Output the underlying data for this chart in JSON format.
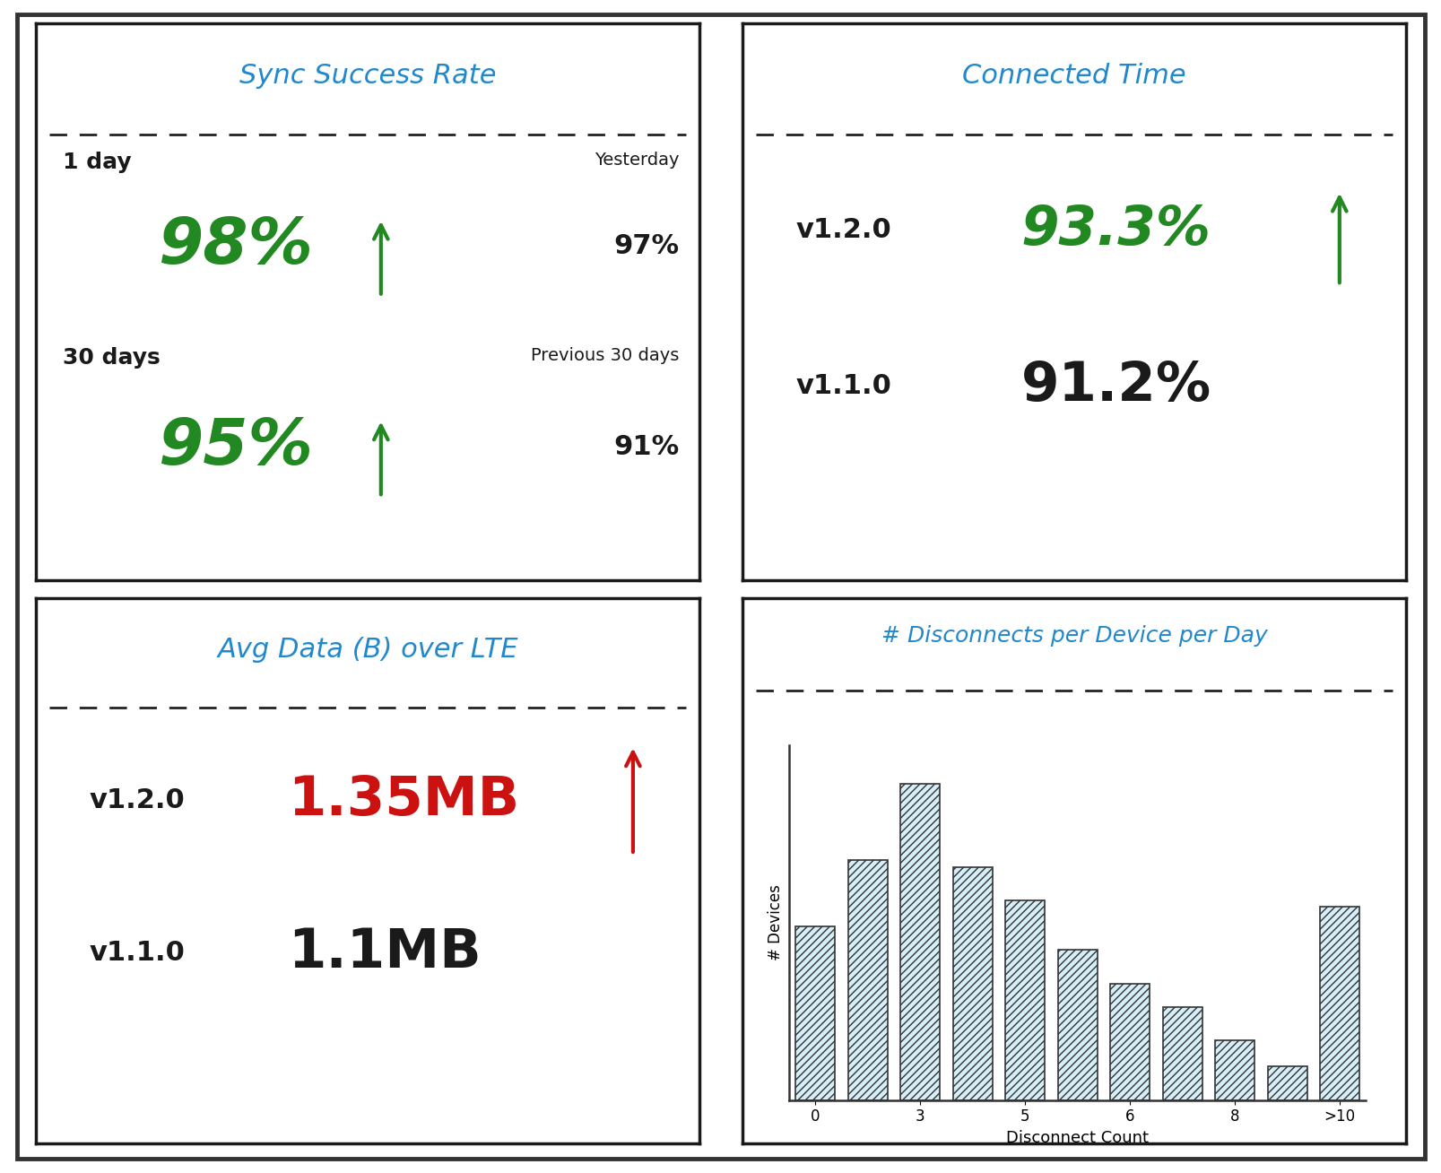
{
  "bg_color": "#ffffff",
  "border_color": "#1a1a1a",
  "outer_border_color": "#333333",
  "panel1": {
    "title": "Sync Success Rate",
    "title_color": "#2288cc",
    "row1_label": "1 day",
    "row1_value": "98%",
    "row1_value_color": "#228822",
    "row1_arrow_color": "#228822",
    "row1_compare_label": "Yesterday",
    "row1_compare_value": "97%",
    "row2_label": "30 days",
    "row2_value": "95%",
    "row2_value_color": "#228822",
    "row2_arrow_color": "#228822",
    "row2_compare_label": "Previous 30 days",
    "row2_compare_value": "91%"
  },
  "panel2": {
    "title": "Connected Time",
    "title_color": "#2288cc",
    "row1_label": "v1.2.0",
    "row1_value": "93.3%",
    "row1_value_color": "#228822",
    "row1_arrow_color": "#228822",
    "row2_label": "v1.1.0",
    "row2_value": "91.2%",
    "row2_value_color": "#1a1a1a"
  },
  "panel3": {
    "title": "Avg Data (B) over LTE",
    "title_color": "#2288cc",
    "row1_label": "v1.2.0",
    "row1_value": "1.35MB",
    "row1_value_color": "#cc1111",
    "row1_arrow_color": "#cc1111",
    "row2_label": "v1.1.0",
    "row2_value": "1.1MB",
    "row2_value_color": "#1a1a1a"
  },
  "panel4": {
    "title": "# Disconnects per Device per Day",
    "title_color": "#2288cc",
    "bar_values": [
      52,
      72,
      95,
      70,
      60,
      45,
      35,
      28,
      18,
      10,
      58
    ],
    "xlabel": "Disconnect Count",
    "ylabel": "# Devices",
    "bar_color": "#d6eef8",
    "bar_edge_color": "#333333",
    "hatch": "////",
    "xtick_positions": [
      0,
      2,
      4,
      6,
      8,
      10
    ],
    "xtick_labels": [
      "0",
      "3",
      "5",
      "6",
      "8",
      ">10"
    ]
  }
}
